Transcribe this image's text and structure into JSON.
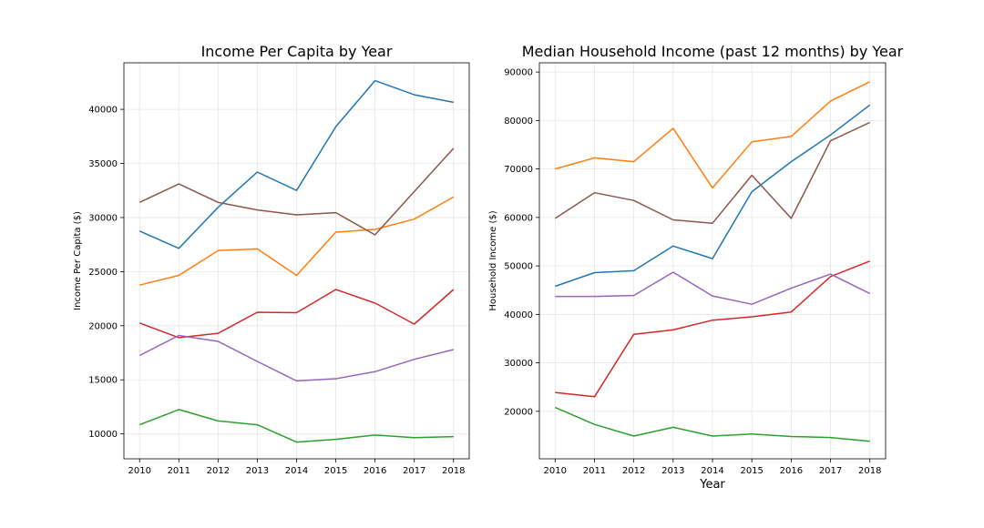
{
  "chart_data": [
    {
      "type": "line",
      "title": "Income Per Capita by Year",
      "xlabel": "",
      "ylabel": "Income Per Capita ($)",
      "x": [
        2010,
        2011,
        2012,
        2013,
        2014,
        2015,
        2016,
        2017,
        2018
      ],
      "yticks": [
        10000,
        15000,
        20000,
        25000,
        30000,
        35000,
        40000
      ],
      "ylim": [
        7700,
        44300
      ],
      "xlim": [
        2009.6,
        2018.4
      ],
      "grid": true,
      "series": [
        {
          "color": "#1f77b4",
          "values": [
            28750,
            27150,
            30950,
            34200,
            32500,
            38400,
            42650,
            41350,
            40650
          ]
        },
        {
          "color": "#ff7f0e",
          "values": [
            23750,
            24650,
            26950,
            27100,
            24650,
            28650,
            28900,
            29850,
            31900
          ]
        },
        {
          "color": "#2ca02c",
          "values": [
            10850,
            12250,
            11200,
            10850,
            9250,
            9500,
            9900,
            9650,
            9750
          ]
        },
        {
          "color": "#d62728",
          "values": [
            20250,
            18900,
            19300,
            21250,
            21200,
            23350,
            22100,
            20150,
            23350
          ]
        },
        {
          "color": "#9467bd",
          "values": [
            17250,
            19100,
            18550,
            16700,
            14900,
            15100,
            15750,
            16900,
            17800
          ]
        },
        {
          "color": "#8c564b",
          "values": [
            31400,
            33100,
            31400,
            30700,
            30250,
            30450,
            28400,
            32400,
            36400
          ]
        }
      ]
    },
    {
      "type": "line",
      "title": "Median Household Income (past 12 months) by Year",
      "xlabel": "Year",
      "ylabel": "Household Income ($)",
      "x": [
        2010,
        2011,
        2012,
        2013,
        2014,
        2015,
        2016,
        2017,
        2018
      ],
      "yticks": [
        20000,
        30000,
        40000,
        50000,
        60000,
        70000,
        80000,
        90000
      ],
      "ylim": [
        10200,
        91900
      ],
      "xlim": [
        2009.6,
        2018.4
      ],
      "grid": true,
      "series": [
        {
          "color": "#1f77b4",
          "values": [
            45800,
            48600,
            49000,
            54100,
            51500,
            65300,
            71500,
            77000,
            83200
          ]
        },
        {
          "color": "#ff7f0e",
          "values": [
            70000,
            72300,
            71500,
            78400,
            66100,
            75600,
            76700,
            84000,
            88000
          ]
        },
        {
          "color": "#2ca02c",
          "values": [
            20800,
            17300,
            14900,
            16700,
            14900,
            15300,
            14800,
            14600,
            13800
          ]
        },
        {
          "color": "#d62728",
          "values": [
            23900,
            23000,
            35900,
            36800,
            38800,
            39500,
            40500,
            47800,
            51000
          ]
        },
        {
          "color": "#9467bd",
          "values": [
            43700,
            43700,
            43900,
            48700,
            43800,
            42100,
            45400,
            48300,
            44300
          ]
        },
        {
          "color": "#8c564b",
          "values": [
            59800,
            65100,
            63500,
            59500,
            58800,
            68700,
            59800,
            75800,
            79600
          ]
        }
      ]
    }
  ]
}
